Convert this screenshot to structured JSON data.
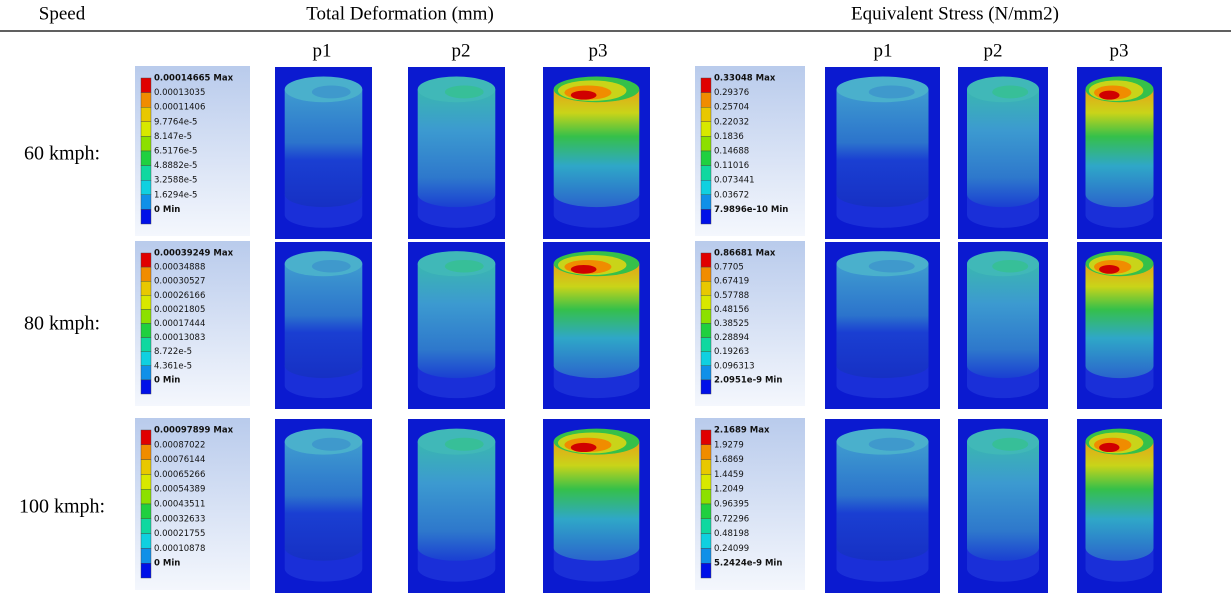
{
  "header": {
    "speed": "Speed",
    "deformation": "Total Deformation (mm)",
    "stress": "Equivalent Stress (N/mm2)"
  },
  "subheaders": {
    "deformation": [
      "p1",
      "p2",
      "p3"
    ],
    "stress": [
      "p1",
      "p2",
      "p3"
    ]
  },
  "rows": [
    {
      "speed": "60 kmph:",
      "deformation_legend": [
        "0.00014665 Max",
        "0.00013035",
        "0.00011406",
        "9.7764e-5",
        "8.147e-5",
        "6.5176e-5",
        "4.8882e-5",
        "3.2588e-5",
        "1.6294e-5",
        "0 Min"
      ],
      "stress_legend": [
        "0.33048 Max",
        "0.29376",
        "0.25704",
        "0.22032",
        "0.1836",
        "0.14688",
        "0.11016",
        "0.073441",
        "0.03672",
        "7.9896e-10 Min"
      ]
    },
    {
      "speed": "80 kmph:",
      "deformation_legend": [
        "0.00039249 Max",
        "0.00034888",
        "0.00030527",
        "0.00026166",
        "0.00021805",
        "0.00017444",
        "0.00013083",
        "8.722e-5",
        "4.361e-5",
        "0 Min"
      ],
      "stress_legend": [
        "0.86681 Max",
        "0.7705",
        "0.67419",
        "0.57788",
        "0.48156",
        "0.38525",
        "0.28894",
        "0.19263",
        "0.096313",
        "2.0951e-9 Min"
      ]
    },
    {
      "speed": "100 kmph:",
      "deformation_legend": [
        "0.00097899 Max",
        "0.00087022",
        "0.00076144",
        "0.00065266",
        "0.00054389",
        "0.00043511",
        "0.00032633",
        "0.00021755",
        "0.00010878",
        "0 Min"
      ],
      "stress_legend": [
        "2.1689 Max",
        "1.9279",
        "1.6869",
        "1.4459",
        "1.2049",
        "0.96395",
        "0.72296",
        "0.48198",
        "0.24099",
        "5.2424e-9 Min"
      ]
    }
  ]
}
